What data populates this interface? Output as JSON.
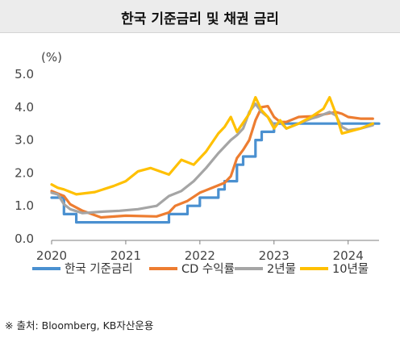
{
  "title": "한국 기준금리 및 채권 금리",
  "source": "※ 출처: Bloomberg, KB자산운용",
  "chart_data": {
    "type": "line",
    "ylabel": "(%)",
    "ylim": [
      0,
      5
    ],
    "yticks": [
      "0.0",
      "1.0",
      "2.0",
      "3.0",
      "4.0",
      "5.0"
    ],
    "xlim": [
      "2020-01",
      "2024-06"
    ],
    "xticks": [
      "2020",
      "2021",
      "2022",
      "2023",
      "2024"
    ],
    "grid": false,
    "legend_position": "bottom",
    "series": [
      {
        "name": "한국 기준금리",
        "color": "#4a90d0",
        "step": true,
        "points": [
          [
            "2020-01",
            1.25
          ],
          [
            "2020-03",
            0.75
          ],
          [
            "2020-05",
            0.5
          ],
          [
            "2021-08",
            0.75
          ],
          [
            "2021-11",
            1.0
          ],
          [
            "2022-01",
            1.25
          ],
          [
            "2022-04",
            1.5
          ],
          [
            "2022-05",
            1.75
          ],
          [
            "2022-07",
            2.25
          ],
          [
            "2022-08",
            2.5
          ],
          [
            "2022-10",
            3.0
          ],
          [
            "2022-11",
            3.25
          ],
          [
            "2023-01",
            3.5
          ],
          [
            "2024-06",
            3.5
          ]
        ]
      },
      {
        "name": "CD 수익률",
        "color": "#ed7d31",
        "step": false,
        "points": [
          [
            "2020-01",
            1.45
          ],
          [
            "2020-03",
            1.3
          ],
          [
            "2020-04",
            1.05
          ],
          [
            "2020-06",
            0.85
          ],
          [
            "2020-09",
            0.65
          ],
          [
            "2021-01",
            0.7
          ],
          [
            "2021-06",
            0.68
          ],
          [
            "2021-08",
            0.8
          ],
          [
            "2021-09",
            1.0
          ],
          [
            "2021-11",
            1.15
          ],
          [
            "2022-01",
            1.4
          ],
          [
            "2022-03",
            1.55
          ],
          [
            "2022-05",
            1.7
          ],
          [
            "2022-06",
            1.9
          ],
          [
            "2022-07",
            2.45
          ],
          [
            "2022-08",
            2.7
          ],
          [
            "2022-09",
            3.0
          ],
          [
            "2022-10",
            3.6
          ],
          [
            "2022-11",
            4.0
          ],
          [
            "2022-12",
            4.03
          ],
          [
            "2023-01",
            3.7
          ],
          [
            "2023-02",
            3.55
          ],
          [
            "2023-03",
            3.55
          ],
          [
            "2023-05",
            3.7
          ],
          [
            "2023-07",
            3.72
          ],
          [
            "2023-09",
            3.78
          ],
          [
            "2023-11",
            3.85
          ],
          [
            "2023-12",
            3.8
          ],
          [
            "2024-01",
            3.7
          ],
          [
            "2024-03",
            3.65
          ],
          [
            "2024-05",
            3.65
          ]
        ]
      },
      {
        "name": "2년물",
        "color": "#a5a5a5",
        "step": false,
        "points": [
          [
            "2020-01",
            1.4
          ],
          [
            "2020-02",
            1.35
          ],
          [
            "2020-03",
            1.05
          ],
          [
            "2020-04",
            0.9
          ],
          [
            "2020-06",
            0.78
          ],
          [
            "2020-09",
            0.82
          ],
          [
            "2020-12",
            0.85
          ],
          [
            "2021-03",
            0.9
          ],
          [
            "2021-06",
            1.0
          ],
          [
            "2021-08",
            1.3
          ],
          [
            "2021-10",
            1.45
          ],
          [
            "2021-12",
            1.75
          ],
          [
            "2022-02",
            2.15
          ],
          [
            "2022-04",
            2.6
          ],
          [
            "2022-06",
            3.0
          ],
          [
            "2022-07",
            3.15
          ],
          [
            "2022-08",
            3.35
          ],
          [
            "2022-09",
            3.85
          ],
          [
            "2022-10",
            4.1
          ],
          [
            "2022-11",
            3.85
          ],
          [
            "2022-12",
            3.7
          ],
          [
            "2023-01",
            3.45
          ],
          [
            "2023-02",
            3.55
          ],
          [
            "2023-03",
            3.35
          ],
          [
            "2023-05",
            3.5
          ],
          [
            "2023-07",
            3.65
          ],
          [
            "2023-08",
            3.7
          ],
          [
            "2023-10",
            3.85
          ],
          [
            "2023-11",
            3.75
          ],
          [
            "2023-12",
            3.4
          ],
          [
            "2024-01",
            3.3
          ],
          [
            "2024-03",
            3.35
          ],
          [
            "2024-05",
            3.45
          ]
        ]
      },
      {
        "name": "10년물",
        "color": "#ffc000",
        "step": false,
        "points": [
          [
            "2020-01",
            1.65
          ],
          [
            "2020-02",
            1.55
          ],
          [
            "2020-03",
            1.5
          ],
          [
            "2020-05",
            1.35
          ],
          [
            "2020-08",
            1.42
          ],
          [
            "2020-11",
            1.6
          ],
          [
            "2021-01",
            1.75
          ],
          [
            "2021-03",
            2.05
          ],
          [
            "2021-05",
            2.15
          ],
          [
            "2021-08",
            1.95
          ],
          [
            "2021-10",
            2.4
          ],
          [
            "2021-12",
            2.25
          ],
          [
            "2022-02",
            2.65
          ],
          [
            "2022-04",
            3.2
          ],
          [
            "2022-05",
            3.4
          ],
          [
            "2022-06",
            3.7
          ],
          [
            "2022-07",
            3.25
          ],
          [
            "2022-09",
            3.8
          ],
          [
            "2022-10",
            4.3
          ],
          [
            "2022-11",
            3.9
          ],
          [
            "2022-12",
            3.7
          ],
          [
            "2023-01",
            3.35
          ],
          [
            "2023-02",
            3.6
          ],
          [
            "2023-03",
            3.35
          ],
          [
            "2023-05",
            3.5
          ],
          [
            "2023-07",
            3.7
          ],
          [
            "2023-09",
            3.95
          ],
          [
            "2023-10",
            4.3
          ],
          [
            "2023-11",
            3.8
          ],
          [
            "2023-12",
            3.2
          ],
          [
            "2024-01",
            3.25
          ],
          [
            "2024-03",
            3.35
          ],
          [
            "2024-05",
            3.5
          ]
        ]
      }
    ]
  }
}
